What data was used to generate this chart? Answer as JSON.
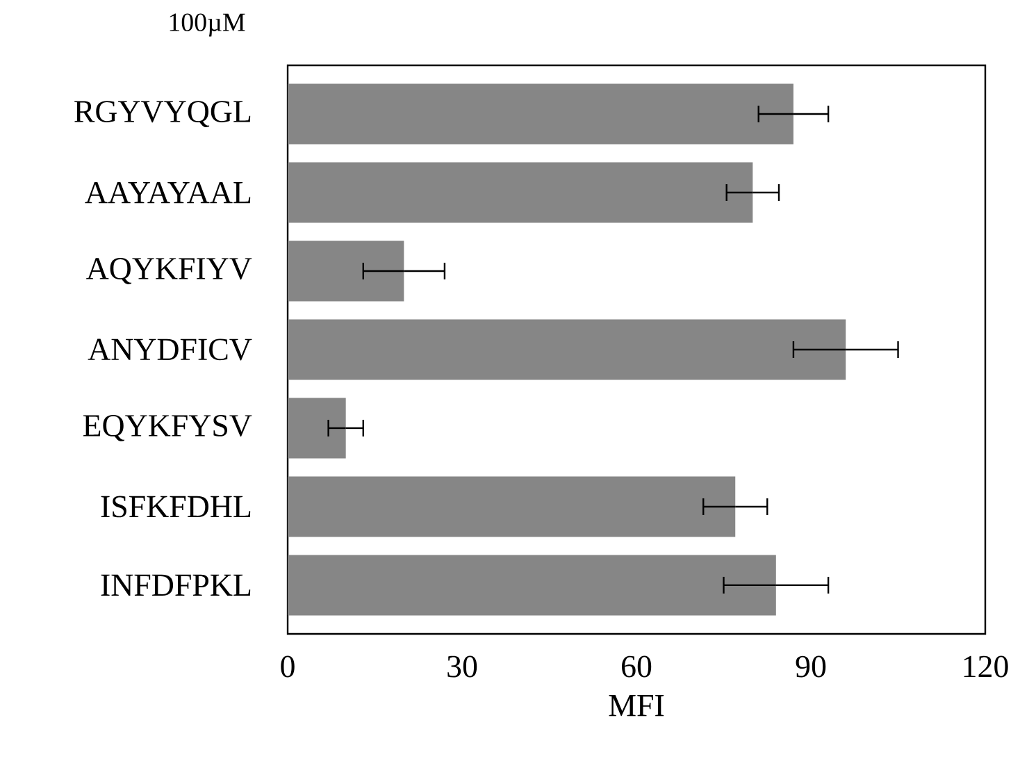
{
  "chart_data": {
    "type": "bar",
    "orientation": "horizontal",
    "xlabel": "MFI",
    "annotations": [
      "100µM"
    ],
    "categories": [
      "RGYVYQGL",
      "AAYAYAAL",
      "AQYKFIYV",
      "ANYDFICV",
      "EQYKFYSV",
      "ISFKFDHL",
      "INFDFPKL"
    ],
    "values": [
      87,
      80,
      20,
      96,
      10,
      77,
      84
    ],
    "errors": [
      6,
      4.5,
      7,
      9,
      3,
      5.5,
      9
    ],
    "color": "#868686",
    "xlim": [
      0,
      120
    ],
    "xticks": [
      0,
      30,
      60,
      90,
      120
    ]
  }
}
